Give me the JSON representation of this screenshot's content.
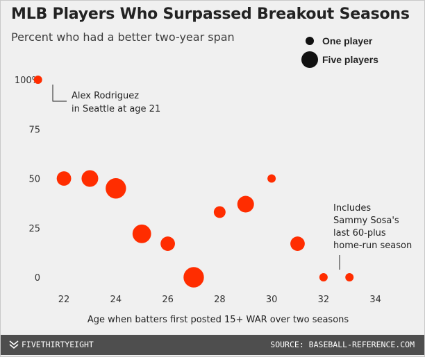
{
  "title": "MLB Players Who Surpassed Breakout Seasons",
  "subtitle": "Percent who had a better two-year span",
  "legend": {
    "small": "One player",
    "large": "Five players"
  },
  "footer": {
    "brand": "FIVETHIRTYEIGHT",
    "source": "SOURCE: BASEBALL-REFERENCE.COM"
  },
  "colors": {
    "point": "#ff2d00",
    "background": "#f0f0f0",
    "footer": "#4e4e4e"
  },
  "annotations": [
    {
      "id": "arod",
      "lines": [
        "Alex Rodriguez",
        "in Seattle at age 21"
      ]
    },
    {
      "id": "sosa",
      "lines": [
        "Includes",
        "Sammy Sosa's",
        "last 60-plus",
        "home-run season"
      ]
    }
  ],
  "chart_data": {
    "type": "scatter",
    "title": "MLB Players Who Surpassed Breakout Seasons",
    "subtitle": "Percent who had a better two-year span",
    "xlabel": "Age when batters first posted 15+ WAR over two seasons",
    "ylabel": "",
    "xlim": [
      20.5,
      35
    ],
    "ylim": [
      0,
      100
    ],
    "x_ticks": [
      22,
      24,
      26,
      28,
      30,
      32,
      34
    ],
    "y_ticks": [
      0,
      25,
      50,
      75,
      100
    ],
    "y_tick_labels": [
      "0",
      "25",
      "50",
      "75",
      "100%"
    ],
    "grid": false,
    "size_legend": [
      {
        "label": "One player",
        "players": 1
      },
      {
        "label": "Five players",
        "players": 5
      }
    ],
    "points": [
      {
        "age": 21,
        "percent": 100,
        "players": 1
      },
      {
        "age": 22,
        "percent": 50,
        "players": 3
      },
      {
        "age": 23,
        "percent": 50,
        "players": 4
      },
      {
        "age": 24,
        "percent": 45,
        "players": 6
      },
      {
        "age": 25,
        "percent": 22,
        "players": 5
      },
      {
        "age": 26,
        "percent": 17,
        "players": 3
      },
      {
        "age": 27,
        "percent": 0,
        "players": 6
      },
      {
        "age": 28,
        "percent": 33,
        "players": 2
      },
      {
        "age": 29,
        "percent": 37,
        "players": 4
      },
      {
        "age": 30,
        "percent": 50,
        "players": 1
      },
      {
        "age": 31,
        "percent": 17,
        "players": 3
      },
      {
        "age": 32,
        "percent": 0,
        "players": 1
      },
      {
        "age": 33,
        "percent": 0,
        "players": 1
      }
    ]
  }
}
